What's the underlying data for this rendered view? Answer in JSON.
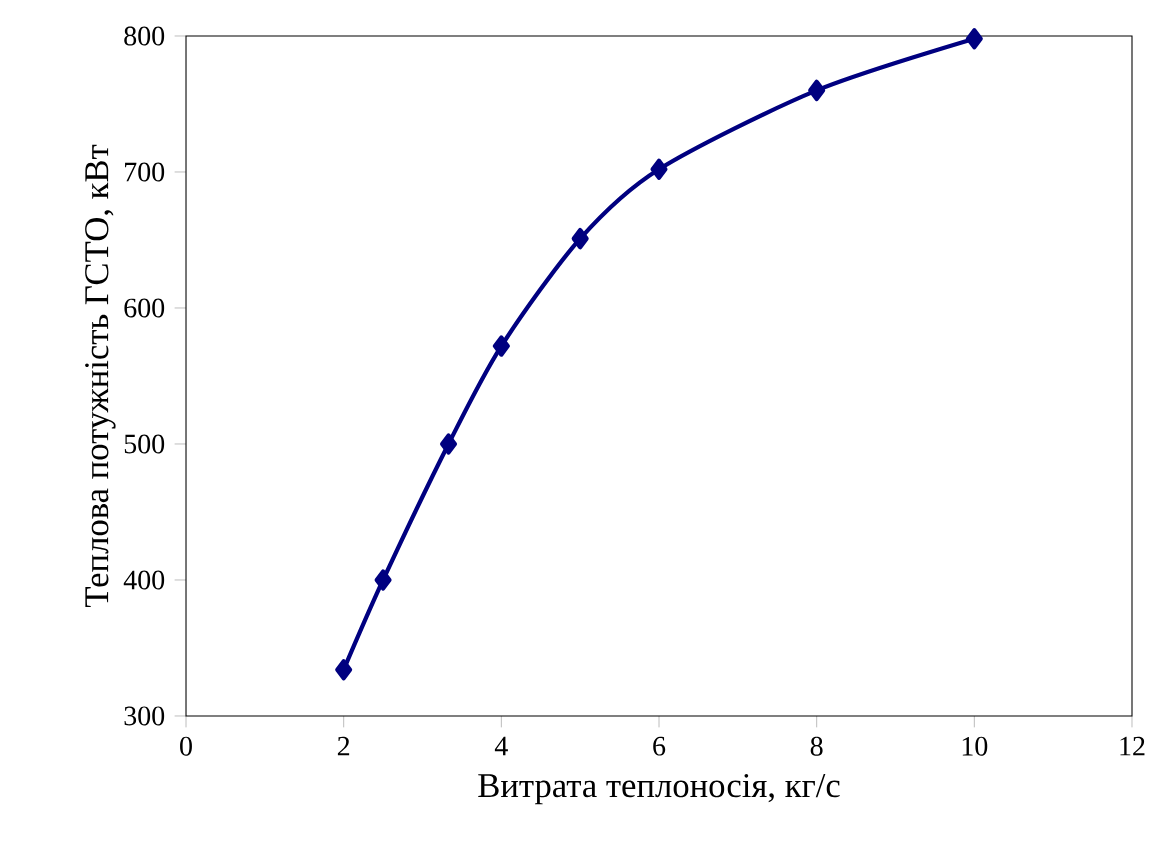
{
  "chart_data": {
    "type": "line",
    "xlabel": "Витрата теплоносія, кг/с",
    "ylabel": "Теплова потужність ГСТО, кВт",
    "x": [
      2,
      2.5,
      3.33,
      4,
      5,
      6,
      8,
      10
    ],
    "series": [
      {
        "color": "#000080",
        "values": [
          334,
          400,
          500,
          572,
          651,
          702,
          760,
          798
        ]
      }
    ],
    "xlim": [
      0,
      12
    ],
    "ylim": [
      300,
      800
    ],
    "xticks": [
      0,
      2,
      4,
      6,
      8,
      10,
      12
    ],
    "yticks": [
      300,
      400,
      500,
      600,
      700,
      800
    ],
    "grid": false,
    "marker": "diamond",
    "line_style": "solid"
  }
}
